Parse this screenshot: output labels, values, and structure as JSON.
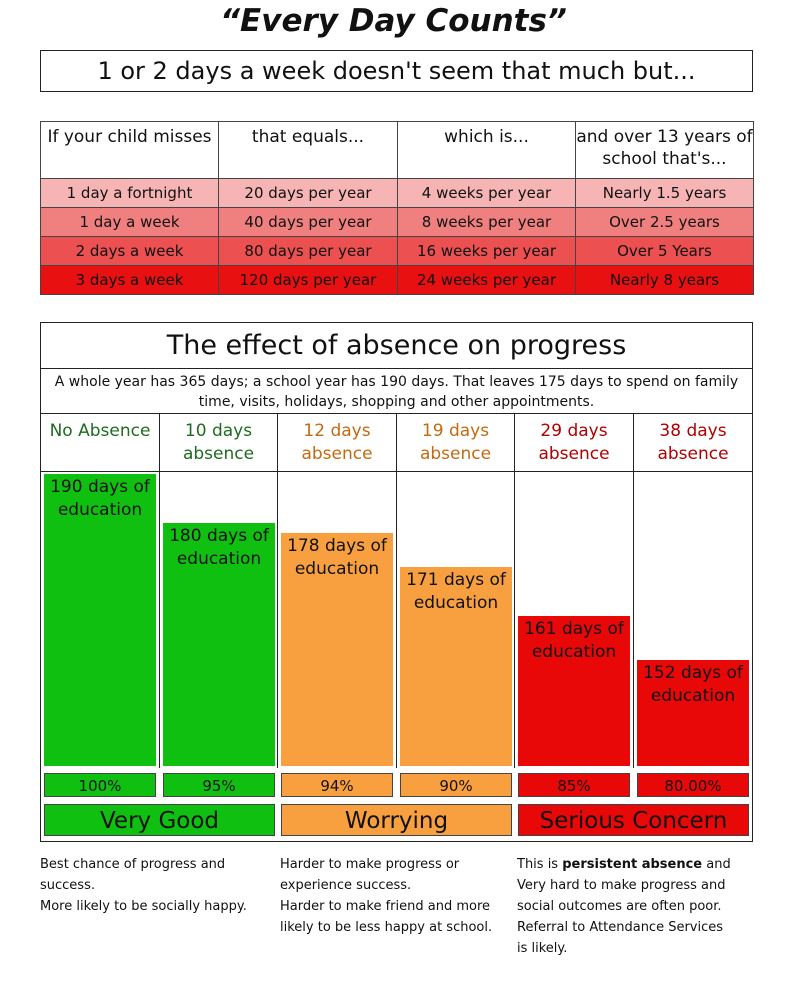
{
  "title": "“Every Day Counts”",
  "subtitle": "1 or 2 days a week doesn't seem that much but...",
  "table": {
    "headers": [
      "If your child misses",
      "that equals...",
      "which is...",
      "and over 13 years of school that's..."
    ],
    "rows": [
      [
        "1 day a fortnight",
        "20 days per year",
        "4 weeks per year",
        "Nearly 1.5 years"
      ],
      [
        "1 day a week",
        "40 days per year",
        "8 weeks per year",
        "Over 2.5 years"
      ],
      [
        "2 days a week",
        "80 days per year",
        "16 weeks per year",
        "Over 5 Years"
      ],
      [
        "3 days a week",
        "120 days per year",
        "24 weeks per year",
        "Nearly 8 years"
      ]
    ]
  },
  "panel": {
    "title": "The effect of absence on progress",
    "note": "A whole year has 365 days; a school year has 190 days.  That leaves 175 days to spend on family time, visits, holidays, shopping and other appointments."
  },
  "chart_data": {
    "type": "bar",
    "categories": [
      "No Absence",
      "10 days absence",
      "12 days absence",
      "19 days absence",
      "29 days absence",
      "38 days absence"
    ],
    "values": [
      190,
      180,
      178,
      171,
      161,
      152
    ],
    "bar_labels": [
      "190 days of education",
      "180 days of education",
      "178 days of education",
      "171 days of education",
      "161 days of education",
      "152 days of education"
    ],
    "percentages": [
      "100%",
      "95%",
      "94%",
      "90%",
      "85%",
      "80.00%"
    ],
    "colors": [
      "#10c010",
      "#10c010",
      "#f8a040",
      "#f8a040",
      "#e80808",
      "#e80808"
    ],
    "header_colors": [
      "#1f6b1f",
      "#1f6b1f",
      "#c36a10",
      "#c36a10",
      "#b00000",
      "#b00000"
    ],
    "bands": [
      {
        "label": "Very Good",
        "color": "#10c010"
      },
      {
        "label": "Worrying",
        "color": "#f8a040"
      },
      {
        "label": "Serious Concern",
        "color": "#e80808"
      }
    ],
    "ylim": [
      130,
      190
    ]
  },
  "descriptions": [
    {
      "lines": [
        "Best chance of progress and",
        "success.",
        "More likely to be socially happy."
      ]
    },
    {
      "lines": [
        "Harder to make progress or",
        "experience success.",
        "Harder to make friend and more",
        "likely to be less happy at school."
      ]
    },
    {
      "lines_html": [
        "This is <b>persistent absence</b> and",
        "Very hard to make progress and",
        "social outcomes are often poor.",
        "Referral to Attendance Services",
        "is likely."
      ]
    }
  ]
}
